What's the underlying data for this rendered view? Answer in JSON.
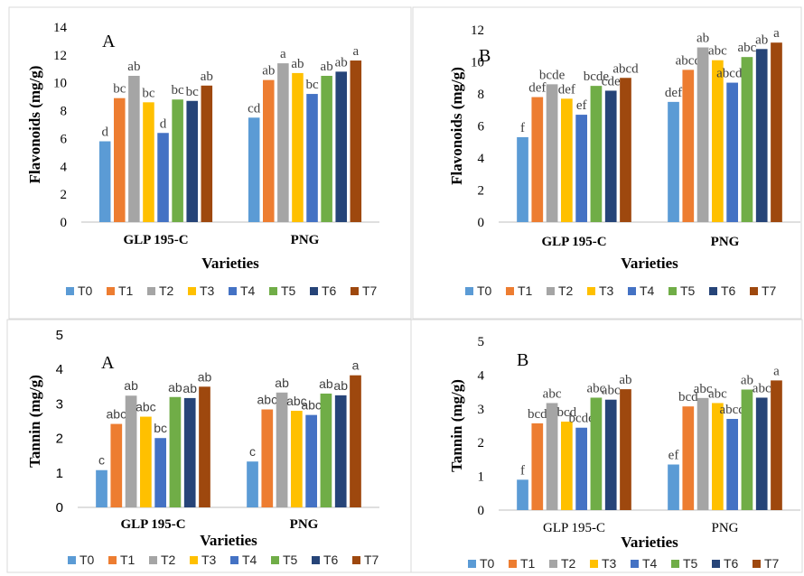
{
  "colors": {
    "T0": "#5B9BD5",
    "T1": "#ED7D31",
    "T2": "#A5A5A5",
    "T3": "#FFC000",
    "T4": "#4472C4",
    "T5": "#70AD47",
    "T6": "#264478",
    "T7": "#9E480E"
  },
  "legend_labels": [
    "T0",
    "T1",
    "T2",
    "T3",
    "T4",
    "T5",
    "T6",
    "T7"
  ],
  "chart_data": [
    {
      "type": "bar",
      "panel_label": "A",
      "ylabel": "Flavonoids (mg/g)",
      "xlabel": "Varieties",
      "categories": [
        "GLP 195-C",
        "PNG"
      ],
      "ylim": [
        0,
        14
      ],
      "yticks": [
        0,
        2,
        4,
        6,
        8,
        10,
        12,
        14
      ],
      "series": [
        {
          "name": "T0",
          "values": [
            5.8,
            7.5
          ],
          "labels": [
            "d",
            "cd"
          ]
        },
        {
          "name": "T1",
          "values": [
            8.9,
            10.2
          ],
          "labels": [
            "bc",
            "ab"
          ]
        },
        {
          "name": "T2",
          "values": [
            10.5,
            11.4
          ],
          "labels": [
            "ab",
            "a"
          ]
        },
        {
          "name": "T3",
          "values": [
            8.6,
            10.7
          ],
          "labels": [
            "bc",
            "ab"
          ]
        },
        {
          "name": "T4",
          "values": [
            6.4,
            9.2
          ],
          "labels": [
            "d",
            "bc"
          ]
        },
        {
          "name": "T5",
          "values": [
            8.8,
            10.5
          ],
          "labels": [
            "bc",
            "ab"
          ]
        },
        {
          "name": "T6",
          "values": [
            8.7,
            10.8
          ],
          "labels": [
            "bc",
            "ab"
          ]
        },
        {
          "name": "T7",
          "values": [
            9.8,
            11.6
          ],
          "labels": [
            "ab",
            "a"
          ]
        }
      ]
    },
    {
      "type": "bar",
      "panel_label": "B",
      "ylabel": "Flavonoids (mg/g)",
      "xlabel": "Varieties",
      "categories": [
        "GLP 195-C",
        "PNG"
      ],
      "ylim": [
        0,
        12
      ],
      "yticks": [
        0,
        2,
        4,
        6,
        8,
        10,
        12
      ],
      "series": [
        {
          "name": "T0",
          "values": [
            5.3,
            7.5
          ],
          "labels": [
            "f",
            "def"
          ]
        },
        {
          "name": "T1",
          "values": [
            7.8,
            9.5
          ],
          "labels": [
            "def",
            "abcd"
          ]
        },
        {
          "name": "T2",
          "values": [
            8.6,
            10.9
          ],
          "labels": [
            "bcde",
            "ab"
          ]
        },
        {
          "name": "T3",
          "values": [
            7.7,
            10.1
          ],
          "labels": [
            "def",
            "abc"
          ]
        },
        {
          "name": "T4",
          "values": [
            6.7,
            8.7
          ],
          "labels": [
            "ef",
            "abcde"
          ]
        },
        {
          "name": "T5",
          "values": [
            8.5,
            10.3
          ],
          "labels": [
            "bcde",
            "abc"
          ]
        },
        {
          "name": "T6",
          "values": [
            8.2,
            10.8
          ],
          "labels": [
            "cde",
            "ab"
          ]
        },
        {
          "name": "T7",
          "values": [
            9.0,
            11.2
          ],
          "labels": [
            "abcd",
            "a"
          ]
        }
      ]
    },
    {
      "type": "bar",
      "panel_label": "A",
      "ylabel": "Tannin (mg/g)",
      "xlabel": "Varieties",
      "categories": [
        "GLP 195-C",
        "PNG"
      ],
      "ylim": [
        0,
        5
      ],
      "yticks": [
        0,
        1,
        2,
        3,
        4,
        5
      ],
      "series": [
        {
          "name": "T0",
          "values": [
            1.08,
            1.33
          ],
          "labels": [
            "c",
            "c"
          ]
        },
        {
          "name": "T1",
          "values": [
            2.42,
            2.84
          ],
          "labels": [
            "abc",
            "abc"
          ]
        },
        {
          "name": "T2",
          "values": [
            3.24,
            3.33
          ],
          "labels": [
            "ab",
            "ab"
          ]
        },
        {
          "name": "T3",
          "values": [
            2.63,
            2.8
          ],
          "labels": [
            "abc",
            "abc"
          ]
        },
        {
          "name": "T4",
          "values": [
            2.01,
            2.68
          ],
          "labels": [
            "bc",
            "abc"
          ]
        },
        {
          "name": "T5",
          "values": [
            3.2,
            3.3
          ],
          "labels": [
            "ab",
            "ab"
          ]
        },
        {
          "name": "T6",
          "values": [
            3.17,
            3.25
          ],
          "labels": [
            "ab",
            "ab"
          ]
        },
        {
          "name": "T7",
          "values": [
            3.5,
            3.83
          ],
          "labels": [
            "ab",
            "a"
          ]
        }
      ]
    },
    {
      "type": "bar",
      "panel_label": "B",
      "ylabel": "Tannin (mg/g)",
      "xlabel": "Varieties",
      "categories": [
        "GLP 195-C",
        "PNG"
      ],
      "ylim": [
        0,
        5
      ],
      "yticks": [
        0,
        1,
        2,
        3,
        4,
        5
      ],
      "series": [
        {
          "name": "T0",
          "values": [
            0.9,
            1.35
          ],
          "labels": [
            "f",
            "ef"
          ]
        },
        {
          "name": "T1",
          "values": [
            2.57,
            3.07
          ],
          "labels": [
            "bcd",
            "bcd"
          ]
        },
        {
          "name": "T2",
          "values": [
            3.17,
            3.32
          ],
          "labels": [
            "abc",
            "abc"
          ]
        },
        {
          "name": "T3",
          "values": [
            2.62,
            3.17
          ],
          "labels": [
            "bcd",
            "abc"
          ]
        },
        {
          "name": "T4",
          "values": [
            2.44,
            2.7
          ],
          "labels": [
            "bcde",
            "abcd"
          ]
        },
        {
          "name": "T5",
          "values": [
            3.33,
            3.57
          ],
          "labels": [
            "abc",
            "ab"
          ]
        },
        {
          "name": "T6",
          "values": [
            3.27,
            3.33
          ],
          "labels": [
            "abc",
            "abc"
          ]
        },
        {
          "name": "T7",
          "values": [
            3.58,
            3.84
          ],
          "labels": [
            "ab",
            "a"
          ]
        }
      ]
    }
  ]
}
